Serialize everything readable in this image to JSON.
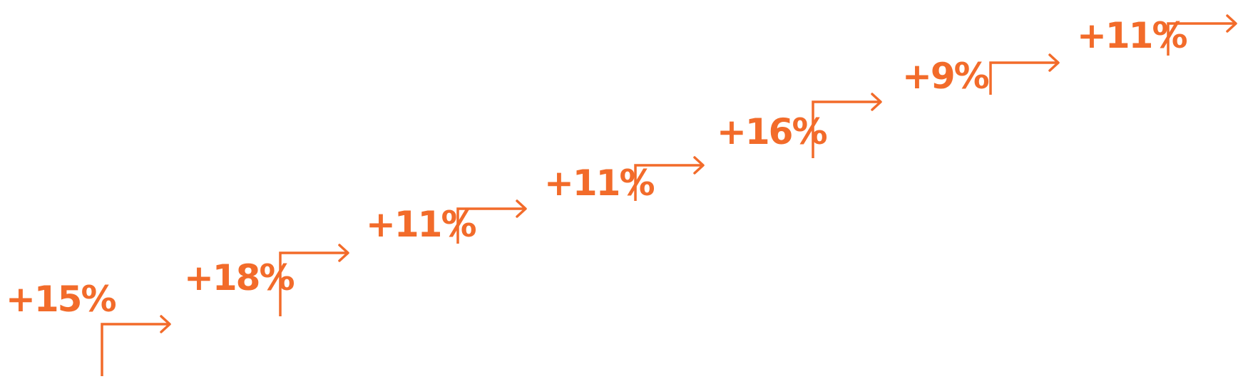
{
  "accent_color": "#F26B2A",
  "steps": [
    {
      "label": "+15%"
    },
    {
      "label": "+18%"
    },
    {
      "label": "+11%"
    },
    {
      "label": "+11%"
    },
    {
      "label": "+16%"
    },
    {
      "label": "+9%"
    },
    {
      "label": "+11%"
    }
  ]
}
